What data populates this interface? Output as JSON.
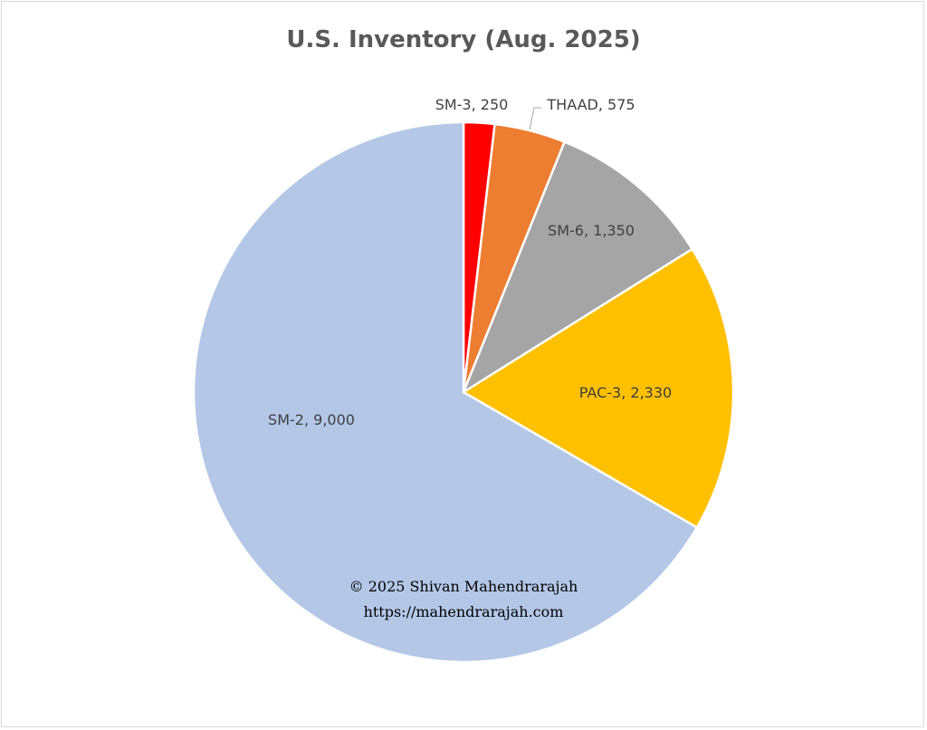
{
  "chart_data": {
    "type": "pie",
    "title": "U.S. Inventory (Aug. 2025)",
    "start": "top, clockwise",
    "slices": [
      {
        "name": "SM-3",
        "value": 250,
        "label": "SM-3, 250",
        "color": "#ff0000"
      },
      {
        "name": "THAAD",
        "value": 575,
        "label": "THAAD, 575",
        "color": "#ed7d31"
      },
      {
        "name": "SM-6",
        "value": 1350,
        "label": "SM-6, 1,350",
        "color": "#a5a5a5"
      },
      {
        "name": "PAC-3",
        "value": 2330,
        "label": "PAC-3, 2,330",
        "color": "#ffc000"
      },
      {
        "name": "SM-2",
        "value": 9000,
        "label": "SM-2, 9,000",
        "color": "#b4c7e7"
      }
    ],
    "legend": "none"
  },
  "watermark": {
    "copyright": "© 2025 Shivan Mahendrarajah",
    "url": "https://mahendrarajah.com"
  }
}
